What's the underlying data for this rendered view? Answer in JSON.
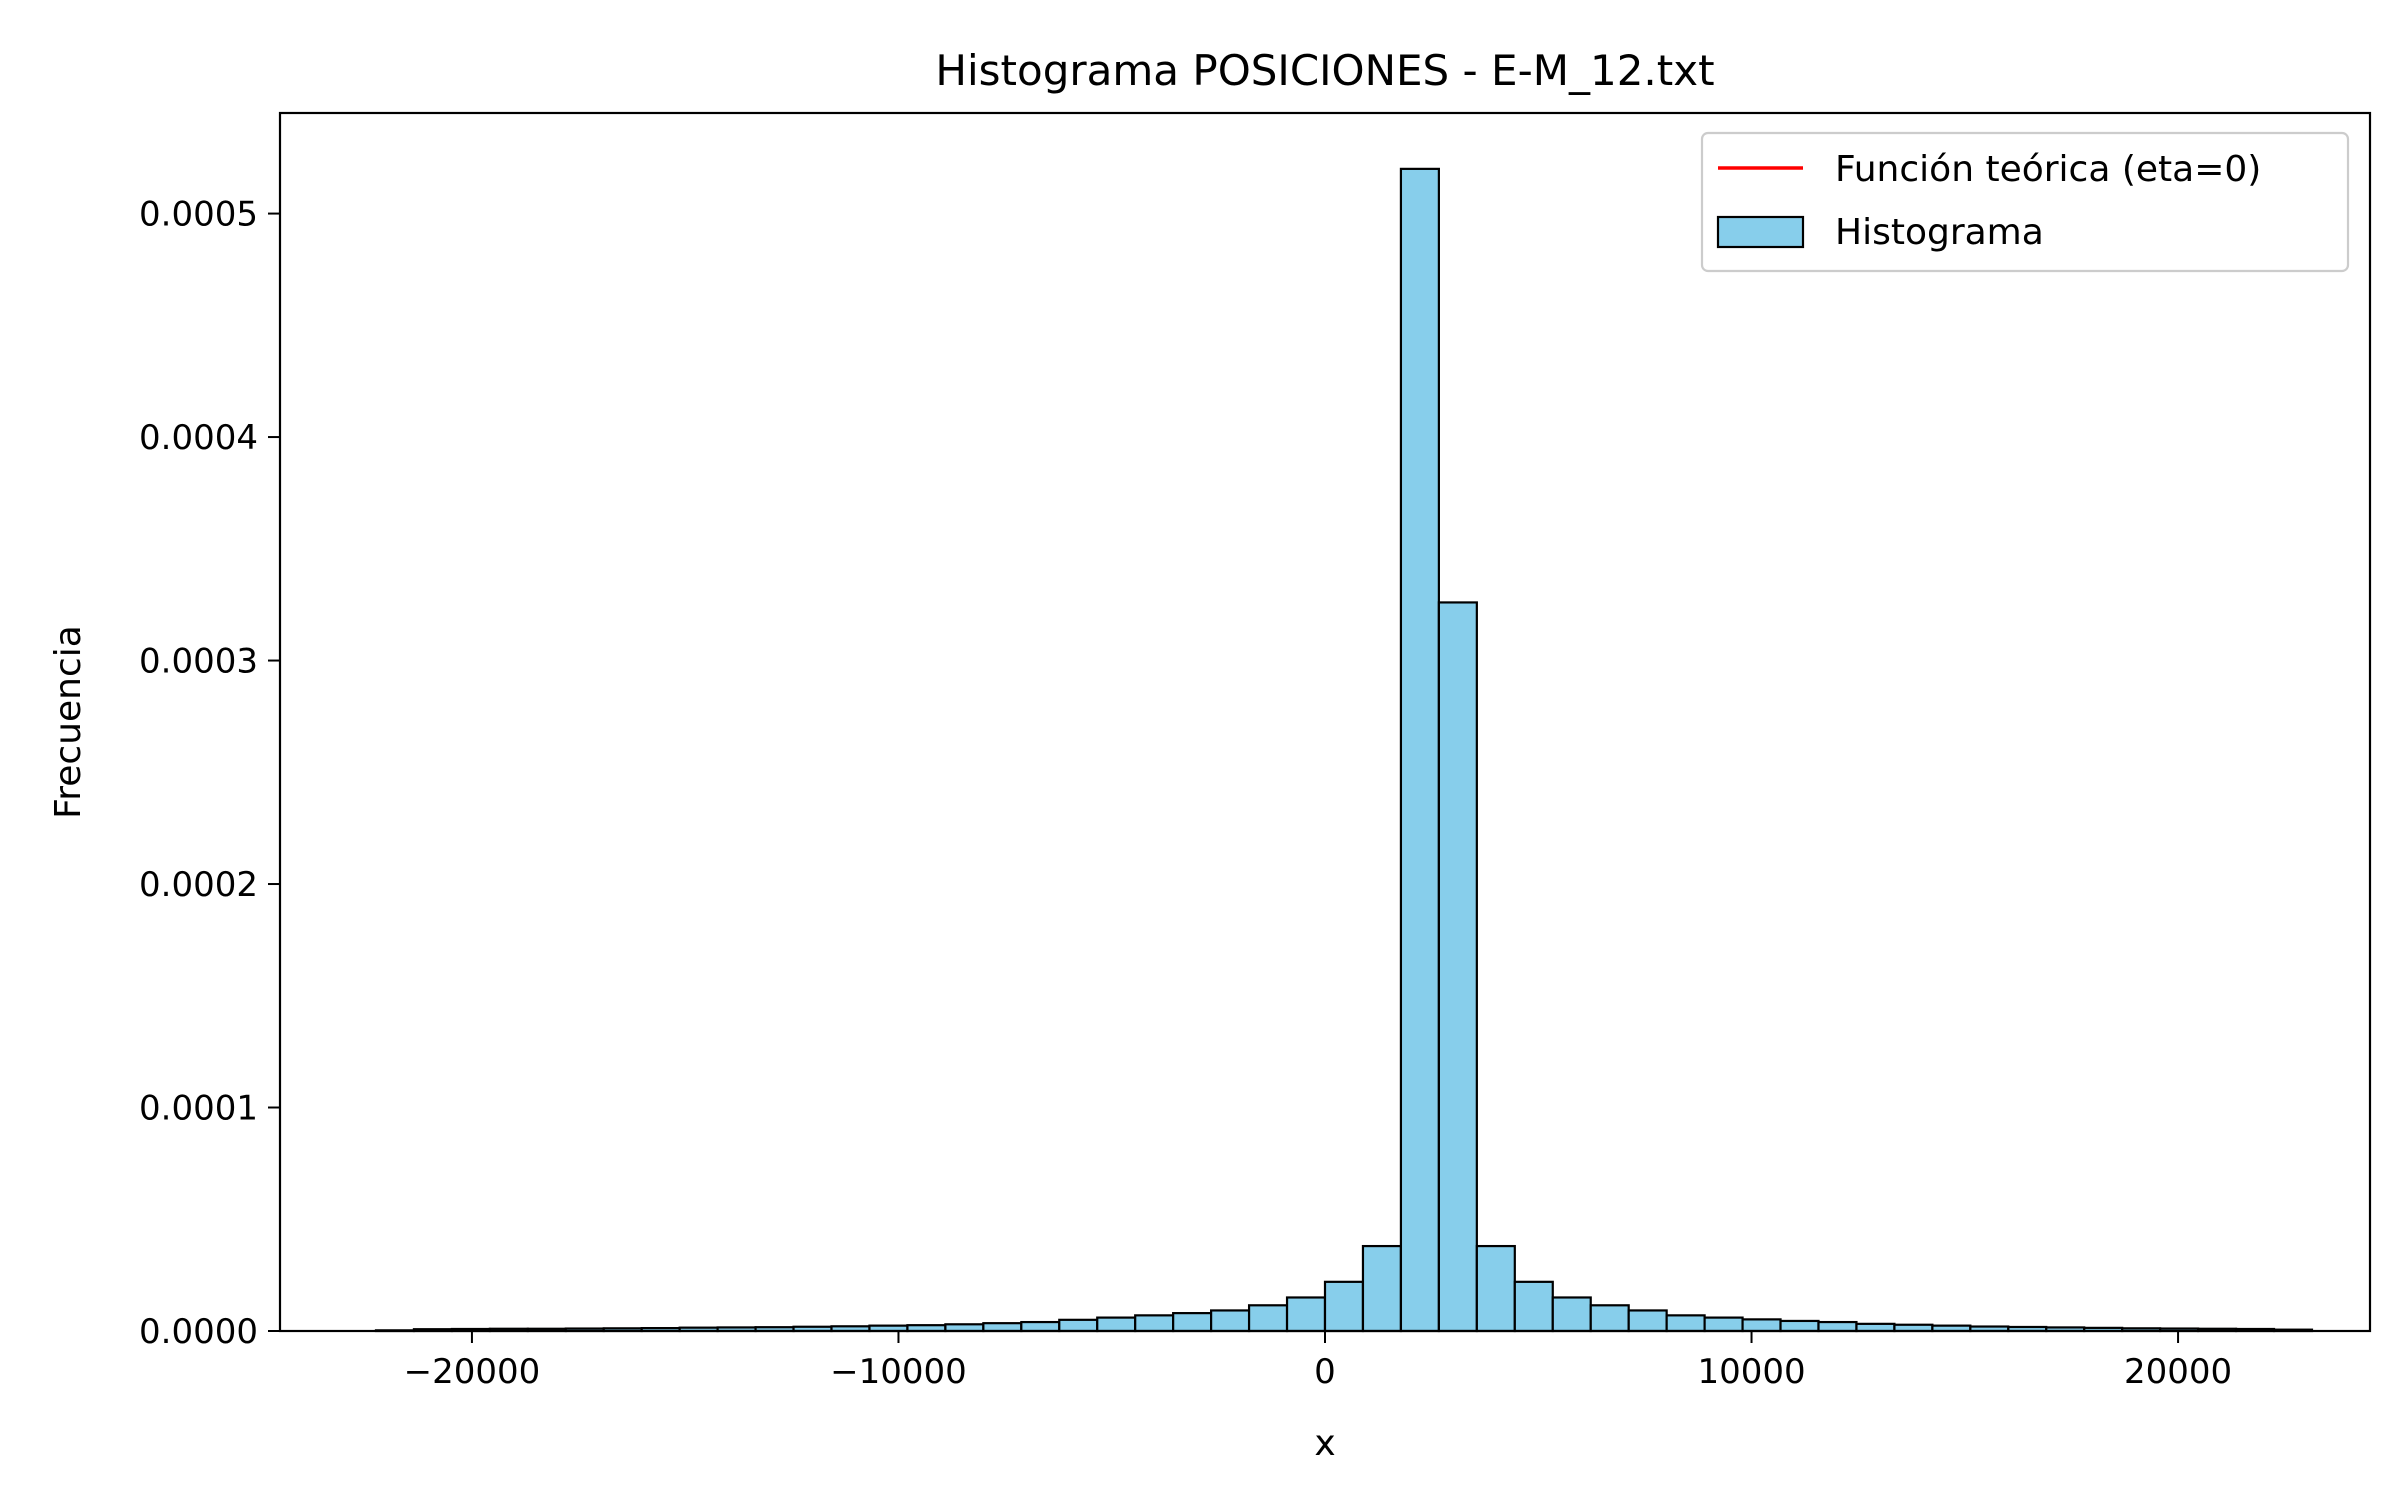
{
  "chart_data": {
    "type": "bar",
    "title": "Histograma POSICIONES - E-M_12.txt",
    "xlabel": "x",
    "ylabel": "Frecuencia",
    "xlim": [
      -24500,
      24500
    ],
    "ylim": [
      0,
      0.000545
    ],
    "x_ticks": [
      -20000,
      -10000,
      0,
      10000,
      20000
    ],
    "x_tick_labels": [
      "−20000",
      "−10000",
      "0",
      "10000",
      "20000"
    ],
    "y_ticks": [
      0,
      0.0001,
      0.0002,
      0.0003,
      0.0004,
      0.0005
    ],
    "y_tick_labels": [
      "0.0000",
      "0.0001",
      "0.0002",
      "0.0003",
      "0.0004",
      "0.0005"
    ],
    "grid": false,
    "legend_position": "top-right",
    "colors": {
      "bar_fill": "#87ceeb",
      "bar_edge": "#000000",
      "theory_line": "#ff0000"
    },
    "series": [
      {
        "name": "Función teórica (eta=0)",
        "type": "line",
        "values": []
      },
      {
        "name": "Histograma",
        "type": "histogram",
        "bin_width": 890,
        "bin_start": -22250,
        "values": [
          3e-07,
          8e-07,
          9e-07,
          1e-06,
          1e-06,
          1.1e-06,
          1.2e-06,
          1.3e-06,
          1.5e-06,
          1.6e-06,
          1.7e-06,
          1.9e-06,
          2.1e-06,
          2.4e-06,
          2.6e-06,
          3e-06,
          3.5e-06,
          4e-06,
          5e-06,
          6e-06,
          7e-06,
          8e-06,
          9.2e-06,
          1.15e-05,
          1.5e-05,
          2.2e-05,
          3.8e-05,
          0.00052,
          0.000326,
          3.8e-05,
          2.2e-05,
          1.5e-05,
          1.15e-05,
          9.2e-06,
          7e-06,
          6e-06,
          5.2e-06,
          4.5e-06,
          4e-06,
          3.2e-06,
          2.8e-06,
          2.4e-06,
          2e-06,
          1.8e-06,
          1.6e-06,
          1.4e-06,
          1.2e-06,
          1.1e-06,
          1e-06,
          9e-07,
          6e-07
        ]
      }
    ]
  }
}
